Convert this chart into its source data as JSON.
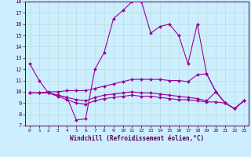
{
  "xlabel": "Windchill (Refroidissement éolien,°C)",
  "background_color": "#cceeff",
  "grid_color": "#b8ddd8",
  "line_color": "#990099",
  "xlim": [
    -0.5,
    23.5
  ],
  "ylim": [
    7,
    18
  ],
  "xticks": [
    0,
    1,
    2,
    3,
    4,
    5,
    6,
    7,
    8,
    9,
    10,
    11,
    12,
    13,
    14,
    15,
    16,
    17,
    18,
    19,
    20,
    21,
    22,
    23
  ],
  "yticks": [
    7,
    8,
    9,
    10,
    11,
    12,
    13,
    14,
    15,
    16,
    17,
    18
  ],
  "series": [
    [
      12.5,
      11.0,
      9.9,
      9.7,
      9.5,
      7.5,
      7.6,
      12.0,
      13.5,
      16.5,
      17.2,
      18.0,
      18.0,
      15.2,
      15.8,
      16.0,
      15.0,
      12.5,
      16.0,
      11.6,
      10.0,
      9.0,
      8.5,
      9.2
    ],
    [
      9.9,
      9.9,
      10.0,
      10.0,
      10.1,
      10.1,
      10.1,
      10.3,
      10.5,
      10.7,
      10.9,
      11.1,
      11.1,
      11.1,
      11.1,
      11.0,
      11.0,
      10.9,
      11.5,
      11.6,
      10.0,
      9.0,
      8.5,
      9.2
    ],
    [
      9.9,
      9.9,
      9.9,
      9.6,
      9.3,
      9.0,
      8.9,
      9.2,
      9.4,
      9.5,
      9.6,
      9.7,
      9.6,
      9.6,
      9.5,
      9.4,
      9.3,
      9.3,
      9.2,
      9.1,
      9.1,
      9.0,
      8.5,
      9.2
    ],
    [
      9.9,
      9.9,
      9.9,
      9.7,
      9.5,
      9.3,
      9.2,
      9.5,
      9.7,
      9.8,
      9.9,
      10.0,
      9.9,
      9.9,
      9.8,
      9.7,
      9.6,
      9.5,
      9.4,
      9.2,
      10.0,
      9.0,
      8.5,
      9.2
    ]
  ]
}
